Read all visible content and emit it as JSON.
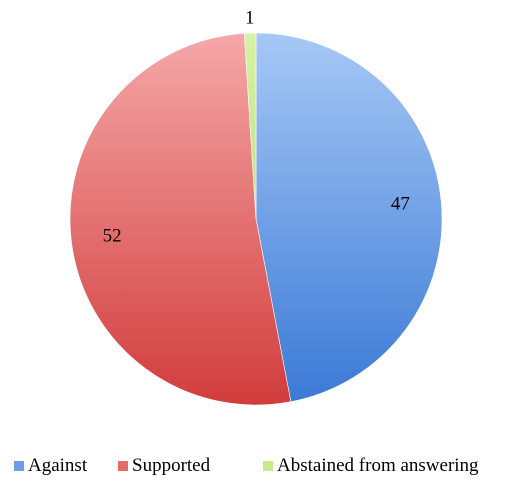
{
  "chart_data": {
    "type": "pie",
    "title": "",
    "categories": [
      "Against",
      "Supported",
      "Abstained from answering"
    ],
    "values": [
      47,
      52,
      1
    ],
    "data_labels": [
      "47",
      "52",
      "1"
    ],
    "start_angle_deg": 0,
    "direction": "clockwise",
    "legend": {
      "position": "bottom",
      "entries": [
        "Against",
        "Supported",
        "Abstained from answering"
      ]
    },
    "colors": {
      "Against": {
        "light": "#a6c8f5",
        "dark": "#3a79d6"
      },
      "Supported": {
        "light": "#f5a8a8",
        "dark": "#d23c3c"
      },
      "Abstained from answering": {
        "light": "#d6f2a4",
        "dark": "#a7d35d"
      }
    },
    "background_color": "#ffffff"
  }
}
